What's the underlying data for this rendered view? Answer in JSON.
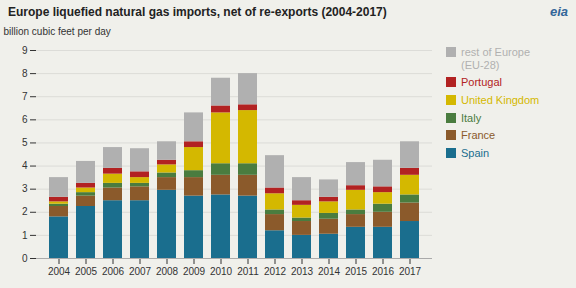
{
  "chart_data": {
    "type": "bar",
    "title": "Europe liquefied natural gas imports, net of re-exports (2004-2017)",
    "ylabel": "billion cubic feet per day",
    "annotations": [
      "eia"
    ],
    "categories": [
      "2004",
      "2005",
      "2006",
      "2007",
      "2008",
      "2009",
      "2010",
      "2011",
      "2012",
      "2013",
      "2014",
      "2015",
      "2016",
      "2017"
    ],
    "series": [
      {
        "name": "Spain",
        "color": "#1a6e8e",
        "values": [
          1.8,
          2.25,
          2.5,
          2.5,
          2.95,
          2.7,
          2.75,
          2.7,
          1.2,
          1.0,
          1.05,
          1.35,
          1.35,
          1.6
        ]
      },
      {
        "name": "France",
        "color": "#8B5A2B",
        "values": [
          0.45,
          0.45,
          0.55,
          0.6,
          0.55,
          0.8,
          0.85,
          0.9,
          0.7,
          0.6,
          0.65,
          0.55,
          0.65,
          0.8
        ]
      },
      {
        "name": "Italy",
        "color": "#4a7c3f",
        "values": [
          0.1,
          0.15,
          0.2,
          0.15,
          0.2,
          0.3,
          0.5,
          0.5,
          0.2,
          0.15,
          0.25,
          0.2,
          0.35,
          0.35
        ]
      },
      {
        "name": "United Kingdom",
        "color": "#d4b800",
        "values": [
          0.1,
          0.2,
          0.4,
          0.25,
          0.35,
          1.0,
          2.2,
          2.3,
          0.7,
          0.55,
          0.5,
          0.85,
          0.5,
          0.85
        ]
      },
      {
        "name": "Portugal",
        "color": "#b22222",
        "values": [
          0.2,
          0.2,
          0.25,
          0.25,
          0.2,
          0.25,
          0.3,
          0.25,
          0.25,
          0.2,
          0.2,
          0.2,
          0.25,
          0.3
        ]
      },
      {
        "name": "rest of Europe\n(EU-28)",
        "color": "#b0b0b0",
        "values": [
          0.85,
          0.95,
          0.9,
          1.0,
          0.8,
          1.25,
          1.2,
          1.35,
          1.4,
          1.0,
          0.75,
          1.0,
          1.15,
          1.15
        ]
      }
    ],
    "stacked": true,
    "ylim": [
      0,
      9
    ],
    "yticks": [
      0,
      1,
      2,
      3,
      4,
      5,
      6,
      7,
      8,
      9
    ],
    "grid": true,
    "legend": "right"
  }
}
